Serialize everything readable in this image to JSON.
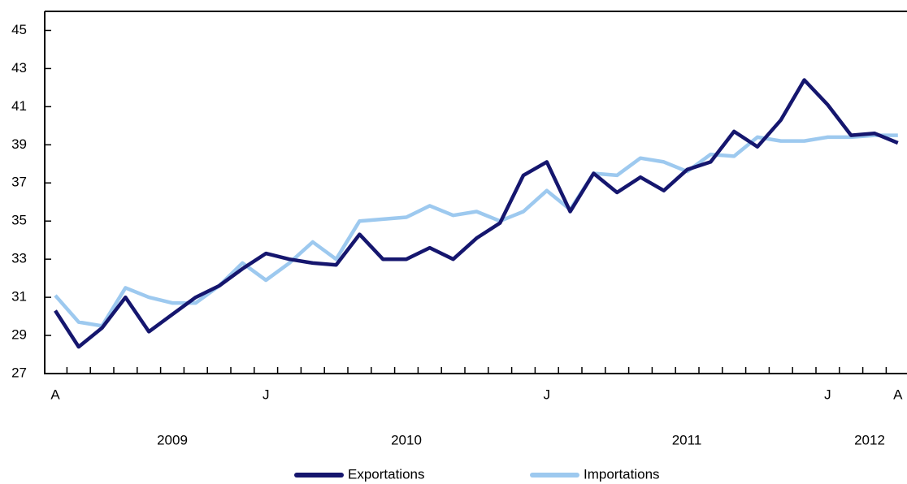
{
  "chart_data": {
    "type": "line",
    "categories": [
      "A",
      null,
      null,
      null,
      null,
      null,
      null,
      null,
      null,
      "J",
      null,
      null,
      null,
      null,
      null,
      null,
      null,
      null,
      null,
      null,
      null,
      "J",
      null,
      null,
      null,
      null,
      null,
      null,
      null,
      null,
      null,
      null,
      null,
      "J",
      null,
      null,
      "A"
    ],
    "year_labels": [
      "2009",
      "2010",
      "2011",
      "2012"
    ],
    "series": [
      {
        "name": "Exportations",
        "color": "#15166e",
        "values": [
          30.3,
          28.4,
          29.4,
          31.0,
          29.2,
          30.1,
          31.0,
          31.6,
          32.5,
          33.3,
          33.0,
          32.8,
          32.7,
          34.3,
          33.0,
          33.0,
          33.6,
          33.0,
          34.1,
          34.9,
          37.4,
          38.1,
          35.5,
          37.5,
          36.5,
          37.3,
          36.6,
          37.7,
          38.1,
          39.7,
          38.9,
          40.3,
          42.4,
          41.1,
          39.5,
          39.6,
          39.1
        ]
      },
      {
        "name": "Importations",
        "color": "#9dc9ef",
        "values": [
          31.1,
          29.7,
          29.5,
          31.5,
          31.0,
          30.7,
          30.7,
          31.6,
          32.8,
          31.9,
          32.8,
          33.9,
          33.0,
          35.0,
          35.1,
          35.2,
          35.8,
          35.3,
          35.5,
          35.0,
          35.5,
          36.6,
          35.6,
          37.5,
          37.4,
          38.3,
          38.1,
          37.6,
          38.5,
          38.4,
          39.4,
          39.2,
          39.2,
          39.4,
          39.4,
          39.5,
          39.5
        ]
      }
    ],
    "ylim": [
      27,
      46
    ],
    "yticks": [
      27,
      29,
      31,
      33,
      35,
      37,
      39,
      41,
      43,
      45
    ]
  }
}
